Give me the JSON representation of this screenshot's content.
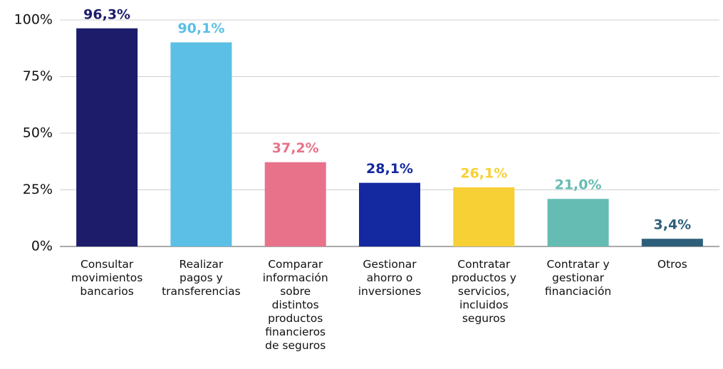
{
  "chart_data": {
    "type": "bar",
    "categories": [
      "Consultar\nmovimientos\nbancarios",
      "Realizar\npagos y\ntransferencias",
      "Comparar\ninformación\nsobre\ndistintos\nproductos\nfinancieros\nde seguros",
      "Gestionar\nahorro o\ninversiones",
      "Contratar\nproductos y\nservicios,\nincluidos\nseguros",
      "Contratar y\ngestionar\nfinanciación",
      "Otros"
    ],
    "values": [
      96.3,
      90.1,
      37.2,
      28.1,
      26.1,
      21.0,
      3.4
    ],
    "value_labels": [
      "96,3%",
      "90,1%",
      "37,2%",
      "28,1%",
      "26,1%",
      "21,0%",
      "3,4%"
    ],
    "colors": [
      "#1c1c6b",
      "#5bbfe6",
      "#e8728a",
      "#1428a0",
      "#f7d035",
      "#65bcb3",
      "#2e5f7a"
    ],
    "ylim": [
      0,
      100
    ],
    "yticks": [
      {
        "value": 0,
        "label": "0%"
      },
      {
        "value": 25,
        "label": "25%"
      },
      {
        "value": 50,
        "label": "50%"
      },
      {
        "value": 75,
        "label": "75%"
      },
      {
        "value": 100,
        "label": "100%"
      }
    ],
    "grid": true
  }
}
